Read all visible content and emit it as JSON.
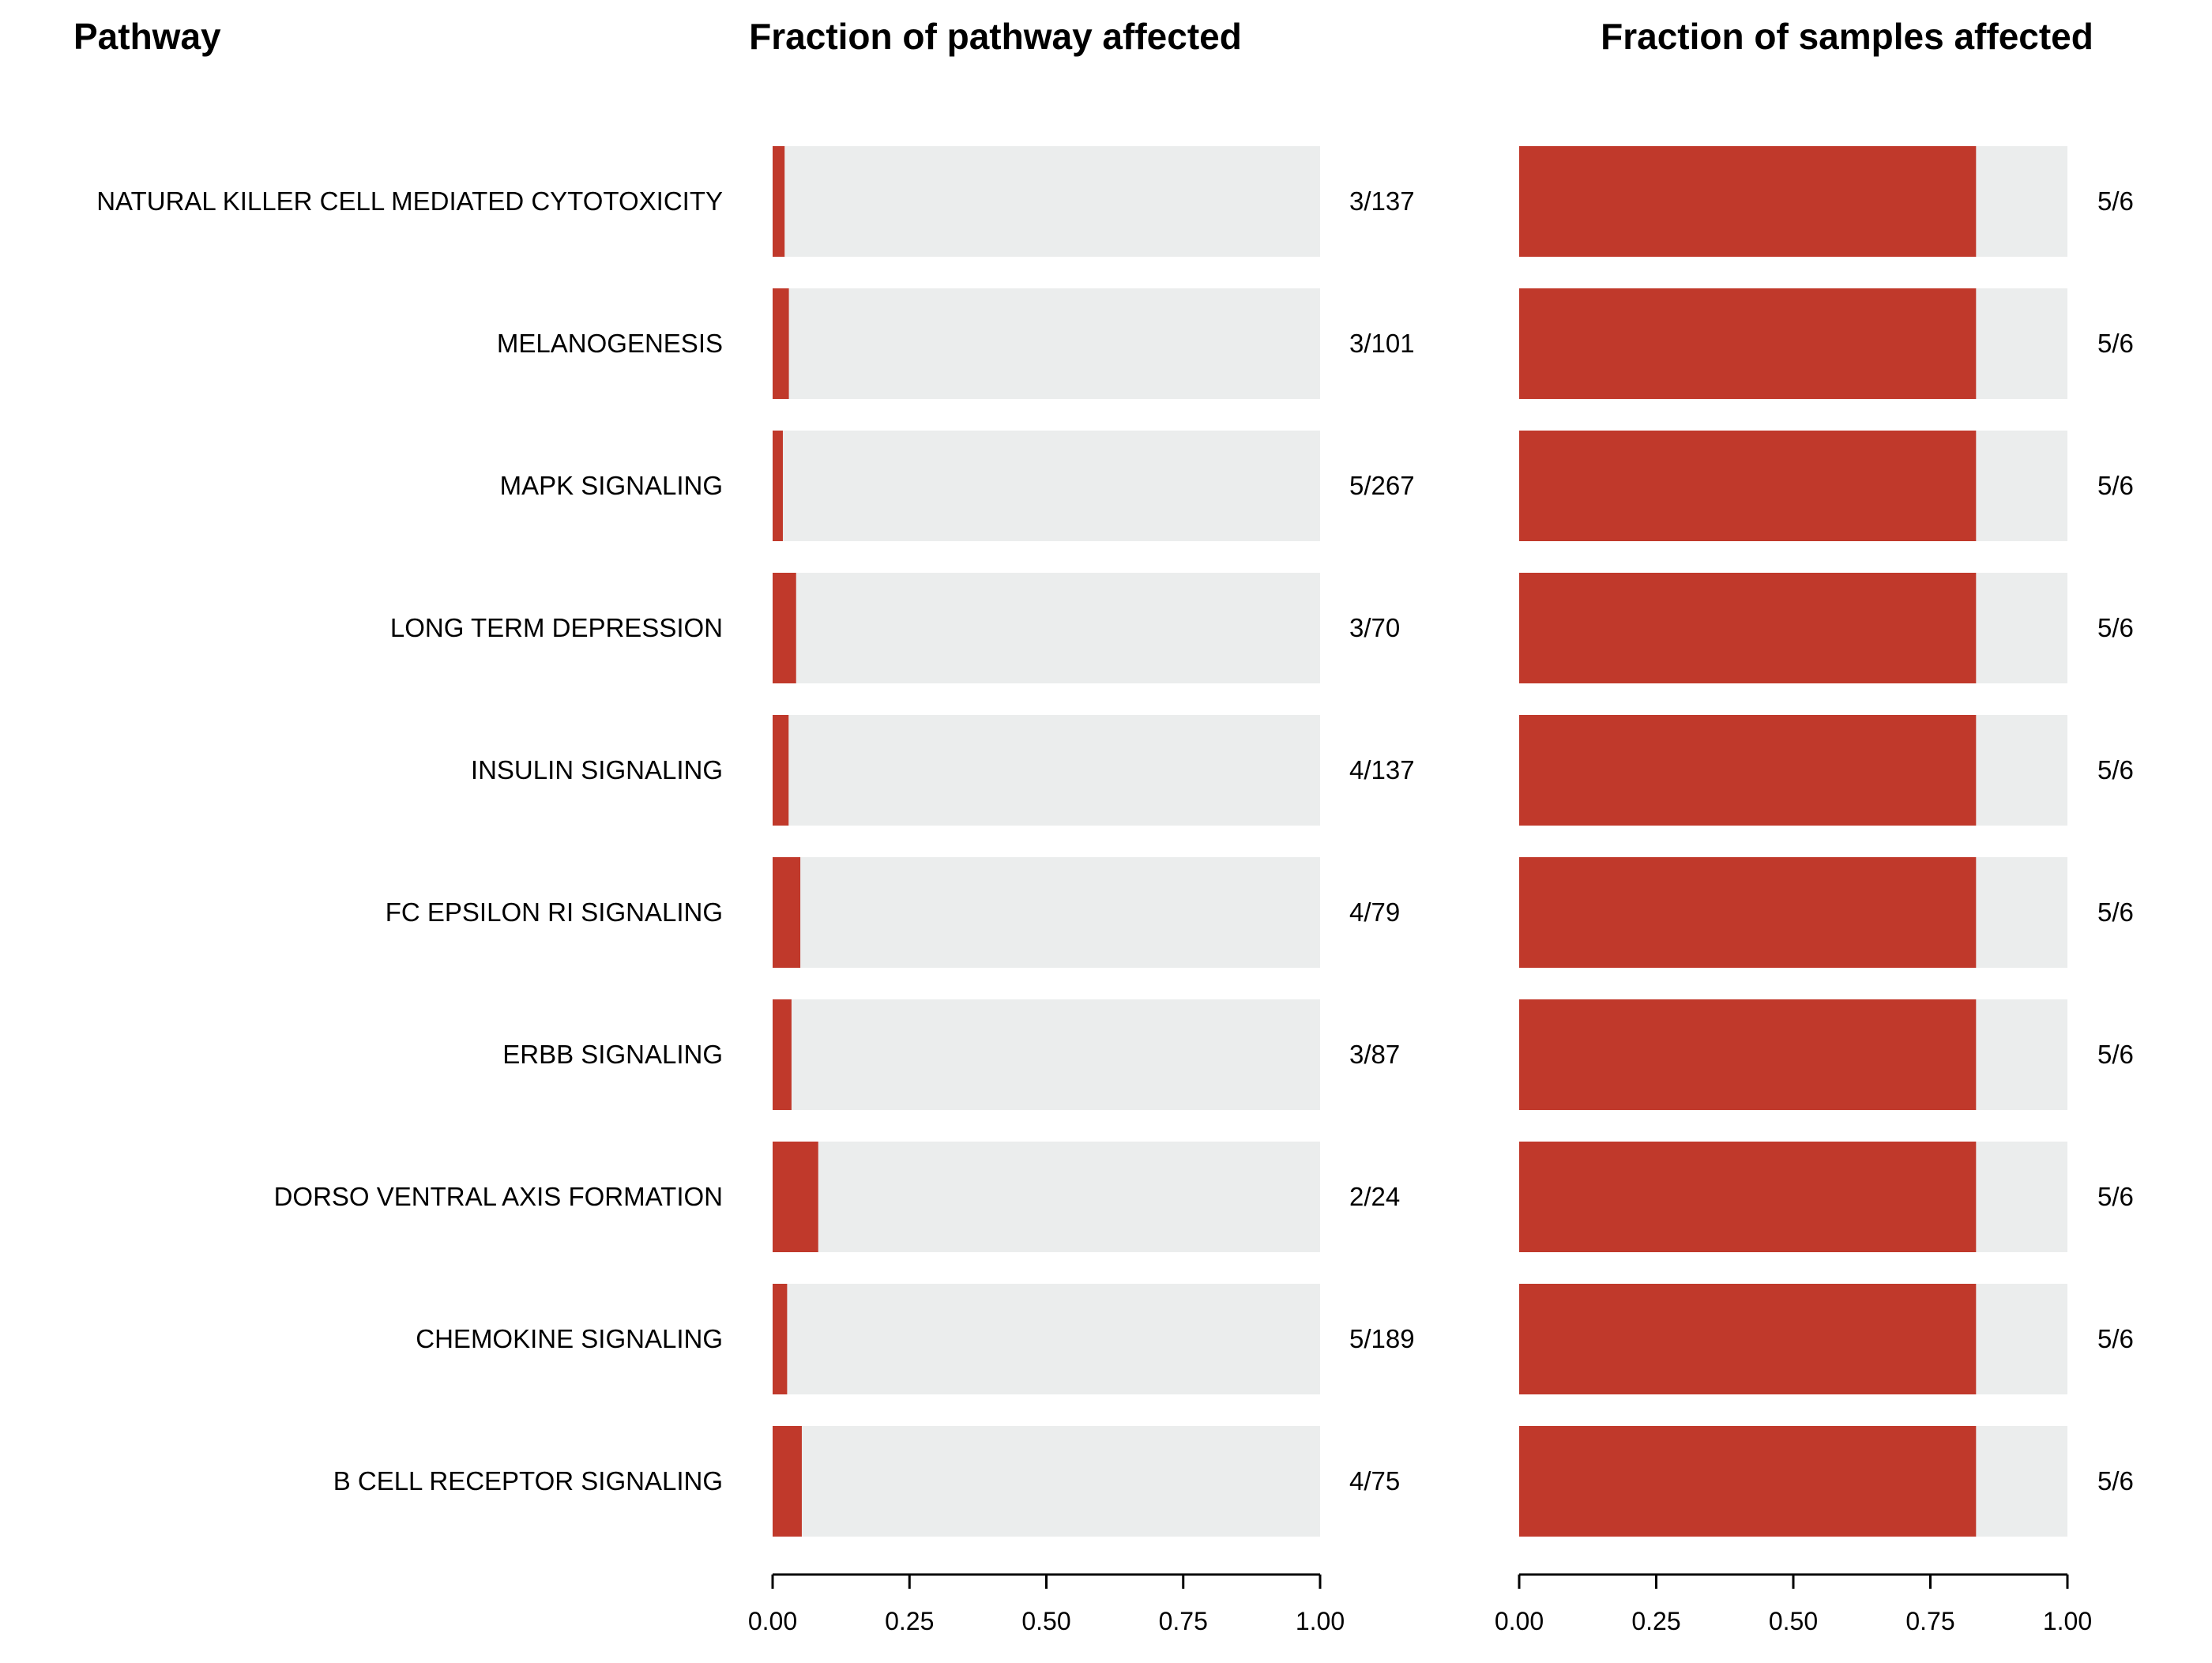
{
  "headers": {
    "pathway": "Pathway",
    "panel_left": "Fraction of pathway affected",
    "panel_right": "Fraction of samples affected"
  },
  "colors": {
    "affected": "#c0392b",
    "background_bar": "#ebeded",
    "axis": "#000000"
  },
  "chart_data": [
    {
      "type": "bar",
      "orientation": "horizontal",
      "title": "Fraction of pathway affected",
      "categories": [
        "NATURAL KILLER CELL MEDIATED CYTOTOXICITY",
        "MELANOGENESIS",
        "MAPK SIGNALING",
        "LONG TERM DEPRESSION",
        "INSULIN SIGNALING",
        "FC EPSILON RI SIGNALING",
        "ERBB SIGNALING",
        "DORSO VENTRAL AXIS FORMATION",
        "CHEMOKINE SIGNALING",
        "B CELL RECEPTOR SIGNALING"
      ],
      "values": [
        0.0219,
        0.0297,
        0.0187,
        0.0429,
        0.0292,
        0.0506,
        0.0345,
        0.0833,
        0.0265,
        0.0533
      ],
      "data_labels": [
        "3/137",
        "3/101",
        "5/267",
        "3/70",
        "4/137",
        "4/79",
        "3/87",
        "2/24",
        "5/189",
        "4/75"
      ],
      "xlim": [
        0,
        1
      ],
      "xticks": [
        "0.00",
        "0.25",
        "0.50",
        "0.75",
        "1.00"
      ],
      "background_bar_value": 1.0
    },
    {
      "type": "bar",
      "orientation": "horizontal",
      "title": "Fraction of samples affected",
      "categories": [
        "NATURAL KILLER CELL MEDIATED CYTOTOXICITY",
        "MELANOGENESIS",
        "MAPK SIGNALING",
        "LONG TERM DEPRESSION",
        "INSULIN SIGNALING",
        "FC EPSILON RI SIGNALING",
        "ERBB SIGNALING",
        "DORSO VENTRAL AXIS FORMATION",
        "CHEMOKINE SIGNALING",
        "B CELL RECEPTOR SIGNALING"
      ],
      "values": [
        0.8333,
        0.8333,
        0.8333,
        0.8333,
        0.8333,
        0.8333,
        0.8333,
        0.8333,
        0.8333,
        0.8333
      ],
      "data_labels": [
        "5/6",
        "5/6",
        "5/6",
        "5/6",
        "5/6",
        "5/6",
        "5/6",
        "5/6",
        "5/6",
        "5/6"
      ],
      "xlim": [
        0,
        1
      ],
      "xticks": [
        "0.00",
        "0.25",
        "0.50",
        "0.75",
        "1.00"
      ],
      "background_bar_value": 1.0
    }
  ]
}
